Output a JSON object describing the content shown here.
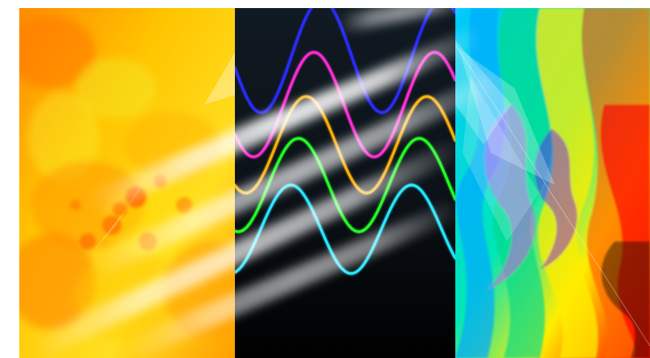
{
  "artwork": {
    "panels": [
      {
        "name": "textured-yellow-orange-panel",
        "colors": [
          "#ff7a00",
          "#ff9a00",
          "#ffd000",
          "#f3ef24",
          "#ff5a00"
        ]
      },
      {
        "name": "sine-wave-panel",
        "background": "#101a22",
        "waves": [
          {
            "color": "#2b2bff",
            "label": ""
          },
          {
            "color": "#ff2bd6",
            "label": ""
          },
          {
            "color": "#ffb000",
            "label": ""
          },
          {
            "color": "#22ff22",
            "label": ""
          },
          {
            "color": "#22e9ff",
            "label": ""
          }
        ]
      },
      {
        "name": "psychedelic-swirl-panel",
        "colors": [
          "#00c8ff",
          "#00e6b8",
          "#ffee00",
          "#ff6a00",
          "#ff0000",
          "#7a00ff",
          "#ff3cff",
          "#000000"
        ]
      }
    ],
    "overlay": {
      "name": "white-light-streaks",
      "color": "#ffffff"
    }
  }
}
